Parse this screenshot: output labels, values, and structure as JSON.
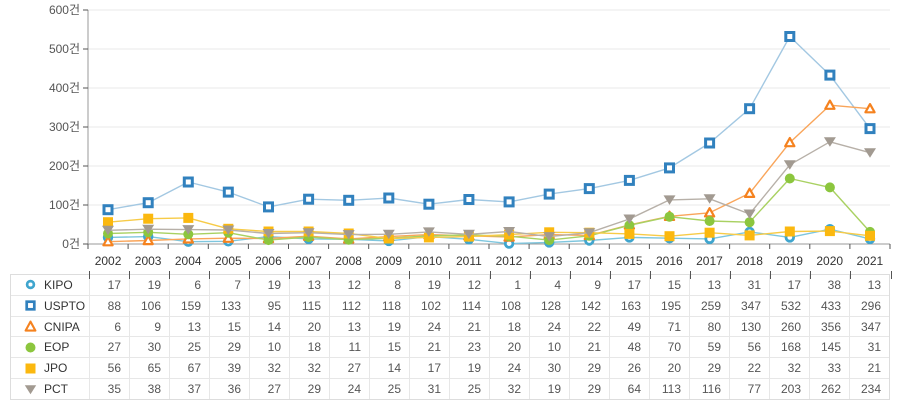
{
  "chart_data": {
    "type": "line",
    "title": "",
    "unit": "건",
    "x": [
      "2002",
      "2003",
      "2004",
      "2005",
      "2006",
      "2007",
      "2008",
      "2009",
      "2010",
      "2011",
      "2012",
      "2013",
      "2014",
      "2015",
      "2016",
      "2017",
      "2018",
      "2019",
      "2020",
      "2021"
    ],
    "y_ticks": [
      {
        "value": 0,
        "label": "0건"
      },
      {
        "value": 100,
        "label": "100건"
      },
      {
        "value": 200,
        "label": "200건"
      },
      {
        "value": 300,
        "label": "300건"
      },
      {
        "value": 400,
        "label": "400건"
      },
      {
        "value": 500,
        "label": "500건"
      },
      {
        "value": 600,
        "label": "600건"
      }
    ],
    "ylim": [
      0,
      600
    ],
    "grid": true,
    "legend_position": "table-left-column",
    "series": [
      {
        "name": "KIPO",
        "marker": "circle-open",
        "color": "#3FA5CE",
        "line_color": "#7EC6DE",
        "values": [
          17,
          19,
          6,
          7,
          19,
          13,
          12,
          8,
          19,
          12,
          1,
          4,
          9,
          17,
          15,
          13,
          31,
          17,
          38,
          13
        ]
      },
      {
        "name": "USPTO",
        "marker": "square-open",
        "color": "#3181BE",
        "line_color": "#A3C8E2",
        "values": [
          88,
          106,
          159,
          133,
          95,
          115,
          112,
          118,
          102,
          114,
          108,
          128,
          142,
          163,
          195,
          259,
          347,
          532,
          433,
          296
        ]
      },
      {
        "name": "CNIPA",
        "marker": "triangle-open",
        "color": "#F5821F",
        "line_color": "#F9A55A",
        "values": [
          6,
          9,
          13,
          15,
          14,
          20,
          13,
          19,
          24,
          21,
          18,
          24,
          22,
          49,
          71,
          80,
          130,
          260,
          356,
          347
        ]
      },
      {
        "name": "EOP",
        "marker": "circle-solid",
        "color": "#8CC63E",
        "line_color": "#A9D162",
        "values": [
          27,
          30,
          25,
          29,
          10,
          18,
          11,
          15,
          21,
          23,
          20,
          10,
          21,
          48,
          70,
          59,
          56,
          168,
          145,
          31
        ]
      },
      {
        "name": "JPO",
        "marker": "square-solid",
        "color": "#FBB80F",
        "line_color": "#F7CB47",
        "values": [
          56,
          65,
          67,
          39,
          32,
          32,
          27,
          14,
          17,
          19,
          24,
          30,
          29,
          26,
          20,
          29,
          22,
          32,
          33,
          21
        ]
      },
      {
        "name": "PCT",
        "marker": "triangle-down-solid",
        "color": "#A29A91",
        "line_color": "#B7B0A8",
        "values": [
          35,
          38,
          37,
          36,
          27,
          29,
          24,
          25,
          31,
          25,
          32,
          19,
          29,
          64,
          113,
          116,
          77,
          203,
          262,
          234
        ]
      }
    ],
    "axis_color": "#999999",
    "tick_color": "#555555",
    "gridline_color": "#e9e9e9"
  }
}
